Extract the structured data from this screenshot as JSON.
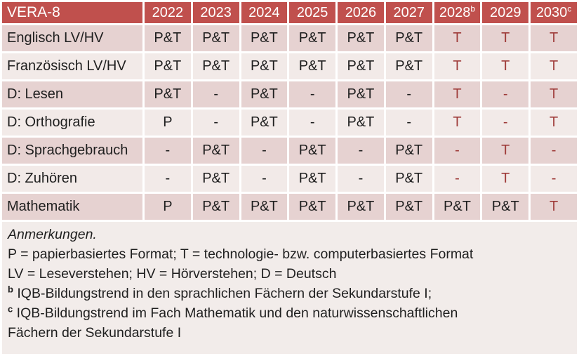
{
  "colors": {
    "header_bg": "#C0504D",
    "band_dark": "#E6D2D1",
    "band_light": "#F2EAE8",
    "notes_bg": "#F2ECEA",
    "accent_text": "#9E3A38",
    "header_text": "#FFFFFF",
    "body_text": "#1F1F1F"
  },
  "table": {
    "title": "VERA-8",
    "columns": [
      {
        "label": "2022",
        "sup": ""
      },
      {
        "label": "2023",
        "sup": ""
      },
      {
        "label": "2024",
        "sup": ""
      },
      {
        "label": "2025",
        "sup": ""
      },
      {
        "label": "2026",
        "sup": ""
      },
      {
        "label": "2027",
        "sup": ""
      },
      {
        "label": "2028",
        "sup": "b"
      },
      {
        "label": "2029",
        "sup": ""
      },
      {
        "label": "2030",
        "sup": "c"
      }
    ],
    "rows": [
      {
        "label": "Englisch LV/HV",
        "cells": [
          {
            "t": "P&T",
            "red": false
          },
          {
            "t": "P&T",
            "red": false
          },
          {
            "t": "P&T",
            "red": false
          },
          {
            "t": "P&T",
            "red": false
          },
          {
            "t": "P&T",
            "red": false
          },
          {
            "t": "P&T",
            "red": false
          },
          {
            "t": "T",
            "red": true
          },
          {
            "t": "T",
            "red": true
          },
          {
            "t": "T",
            "red": true
          }
        ]
      },
      {
        "label": "Französisch LV/HV",
        "cells": [
          {
            "t": "P&T",
            "red": false
          },
          {
            "t": "P&T",
            "red": false
          },
          {
            "t": "P&T",
            "red": false
          },
          {
            "t": "P&T",
            "red": false
          },
          {
            "t": "P&T",
            "red": false
          },
          {
            "t": "P&T",
            "red": false
          },
          {
            "t": "T",
            "red": true
          },
          {
            "t": "T",
            "red": true
          },
          {
            "t": "T",
            "red": true
          }
        ]
      },
      {
        "label": "D: Lesen",
        "cells": [
          {
            "t": "P&T",
            "red": false
          },
          {
            "t": "-",
            "red": false
          },
          {
            "t": "P&T",
            "red": false
          },
          {
            "t": "-",
            "red": false
          },
          {
            "t": "P&T",
            "red": false
          },
          {
            "t": "-",
            "red": false
          },
          {
            "t": "T",
            "red": true
          },
          {
            "t": "-",
            "red": true
          },
          {
            "t": "T",
            "red": true
          }
        ]
      },
      {
        "label": "D: Orthografie",
        "cells": [
          {
            "t": "P",
            "red": false
          },
          {
            "t": "-",
            "red": false
          },
          {
            "t": "P&T",
            "red": false
          },
          {
            "t": "-",
            "red": false
          },
          {
            "t": "P&T",
            "red": false
          },
          {
            "t": "-",
            "red": false
          },
          {
            "t": "T",
            "red": true
          },
          {
            "t": "-",
            "red": true
          },
          {
            "t": "T",
            "red": true
          }
        ]
      },
      {
        "label": "D: Sprachgebrauch",
        "cells": [
          {
            "t": "-",
            "red": false
          },
          {
            "t": "P&T",
            "red": false
          },
          {
            "t": "-",
            "red": false
          },
          {
            "t": "P&T",
            "red": false
          },
          {
            "t": "-",
            "red": false
          },
          {
            "t": "P&T",
            "red": false
          },
          {
            "t": "-",
            "red": true
          },
          {
            "t": "T",
            "red": true
          },
          {
            "t": "-",
            "red": true
          }
        ]
      },
      {
        "label": "D: Zuhören",
        "cells": [
          {
            "t": "-",
            "red": false
          },
          {
            "t": "P&T",
            "red": false
          },
          {
            "t": "-",
            "red": false
          },
          {
            "t": "P&T",
            "red": false
          },
          {
            "t": "-",
            "red": false
          },
          {
            "t": "P&T",
            "red": false
          },
          {
            "t": "-",
            "red": true
          },
          {
            "t": "T",
            "red": true
          },
          {
            "t": "-",
            "red": true
          }
        ]
      },
      {
        "label": "Mathematik",
        "cells": [
          {
            "t": "P",
            "red": false
          },
          {
            "t": "P&T",
            "red": false
          },
          {
            "t": "P&T",
            "red": false
          },
          {
            "t": "P&T",
            "red": false
          },
          {
            "t": "P&T",
            "red": false
          },
          {
            "t": "P&T",
            "red": false
          },
          {
            "t": "P&T",
            "red": false
          },
          {
            "t": "P&T",
            "red": false
          },
          {
            "t": "T",
            "red": true
          }
        ]
      }
    ]
  },
  "notes": {
    "heading": "Anmerkungen.",
    "lines": [
      {
        "sup": "",
        "text": "P = papierbasiertes Format; T = technologie- bzw. computerbasiertes Format"
      },
      {
        "sup": "",
        "text": "LV = Leseverstehen; HV = Hörverstehen; D = Deutsch"
      },
      {
        "sup": "b",
        "text": "IQB-Bildungstrend in den sprachlichen Fächern der Sekundarstufe I;"
      },
      {
        "sup": "c",
        "text": "IQB-Bildungstrend im Fach Mathematik und den naturwissenschaftlichen"
      },
      {
        "sup": "",
        "text": "Fächern der Sekundarstufe I"
      }
    ]
  }
}
